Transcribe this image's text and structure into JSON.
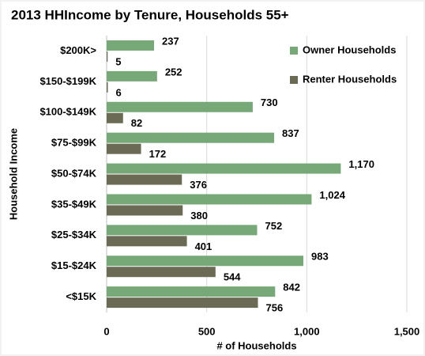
{
  "chart_data": {
    "type": "barh",
    "title": "2013 HHIncome by Tenure, Households 55+",
    "xlabel": "# of Households",
    "ylabel": "Household Income",
    "categories": [
      "$200K>",
      "$150-$199K",
      "$100-$149K",
      "$75-$99K",
      "$50-$74K",
      "$35-$49K",
      "$25-$34K",
      "$15-$24K",
      "<$15K"
    ],
    "series": [
      {
        "name": "Owner Households",
        "color": "#77a878",
        "values": [
          237,
          252,
          730,
          837,
          1170,
          1024,
          752,
          983,
          842
        ],
        "value_labels": [
          "237",
          "252",
          "730",
          "837",
          "1,170",
          "1,024",
          "752",
          "983",
          "842"
        ]
      },
      {
        "name": "Renter Households",
        "color": "#6b6b55",
        "values": [
          5,
          6,
          82,
          172,
          376,
          380,
          401,
          544,
          756
        ]
      }
    ],
    "xlim": [
      0,
      1500
    ],
    "xticks": [
      0,
      500,
      {
        "value": 1000,
        "label": "1,000"
      },
      {
        "value": 1500,
        "label": "1,500"
      }
    ],
    "grid": true,
    "legend": "top-right"
  }
}
